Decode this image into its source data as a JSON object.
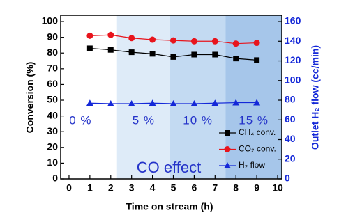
{
  "chart_data": {
    "type": "line",
    "x_label": "Time on stream (h)",
    "y_label": "Conversion (%)",
    "y2_label": "Outlet H₂ flow (cc/min)",
    "annotation": "CO effect",
    "xlim": [
      -0.4,
      10.2
    ],
    "xticks": [
      0,
      1,
      2,
      3,
      4,
      5,
      6,
      7,
      8,
      9,
      10
    ],
    "ylim": [
      0,
      104
    ],
    "yticks": [
      0,
      10,
      20,
      30,
      40,
      50,
      60,
      70,
      80,
      90,
      100
    ],
    "y2lim": [
      0,
      166.4
    ],
    "y2ticks": [
      0,
      20,
      40,
      60,
      80,
      100,
      120,
      140,
      160
    ],
    "regions": [
      {
        "label": "0 %",
        "from": -0.4,
        "to": 2.3,
        "color": "#ffffff"
      },
      {
        "label": "5 %",
        "from": 2.3,
        "to": 4.85,
        "color": "#deebf8"
      },
      {
        "label": "10 %",
        "from": 4.85,
        "to": 7.5,
        "color": "#c3daf2"
      },
      {
        "label": "15 %",
        "from": 7.5,
        "to": 10.2,
        "color": "#a6c6ea"
      }
    ],
    "x": [
      1,
      2,
      3,
      4,
      5,
      6,
      7,
      8,
      9
    ],
    "series": [
      {
        "name": "CH₄ conv.",
        "color": "#000000",
        "marker": "square",
        "values": [
          83,
          82,
          80.5,
          79.5,
          77.5,
          79,
          79,
          76.5,
          75.5
        ]
      },
      {
        "name": "CO₂ conv.",
        "color": "#e8141c",
        "marker": "circle",
        "values": [
          91,
          91.5,
          89.5,
          88.5,
          88,
          87.5,
          87.5,
          86,
          86.5
        ]
      },
      {
        "name": "H₂ flow",
        "color": "#1428d8",
        "marker": "triangle",
        "axis": "y2",
        "values": [
          77,
          76.5,
          76.5,
          77,
          76.5,
          76.5,
          77,
          77.5,
          77.5
        ]
      }
    ]
  }
}
